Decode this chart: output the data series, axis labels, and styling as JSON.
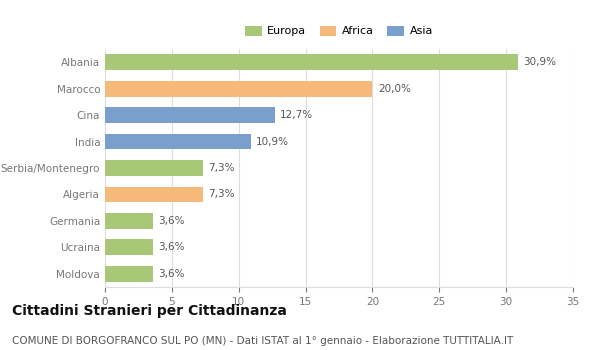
{
  "categories": [
    "Albania",
    "Marocco",
    "Cina",
    "India",
    "Serbia/Montenegro",
    "Algeria",
    "Germania",
    "Ucraina",
    "Moldova"
  ],
  "values": [
    30.9,
    20.0,
    12.7,
    10.9,
    7.3,
    7.3,
    3.6,
    3.6,
    3.6
  ],
  "continents": [
    "Europa",
    "Africa",
    "Asia",
    "Asia",
    "Europa",
    "Africa",
    "Europa",
    "Europa",
    "Europa"
  ],
  "colors": {
    "Europa": "#a8c878",
    "Africa": "#f5b97a",
    "Asia": "#7a9fcc"
  },
  "legend_items": [
    "Europa",
    "Africa",
    "Asia"
  ],
  "xlim": [
    0,
    35
  ],
  "xticks": [
    0,
    5,
    10,
    15,
    20,
    25,
    30,
    35
  ],
  "title": "Cittadini Stranieri per Cittadinanza",
  "subtitle": "COMUNE DI BORGOFRANCO SUL PO (MN) - Dati ISTAT al 1° gennaio - Elaborazione TUTTITALIA.IT",
  "title_fontsize": 10,
  "subtitle_fontsize": 7.5,
  "label_fontsize": 7.5,
  "tick_fontsize": 7.5,
  "legend_fontsize": 8,
  "bg_color": "#ffffff",
  "grid_color": "#dddddd"
}
